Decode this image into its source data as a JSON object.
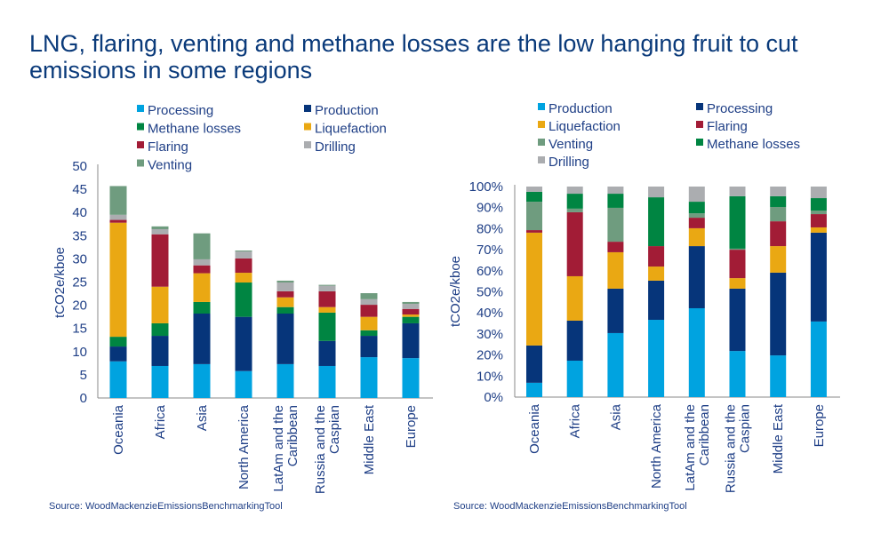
{
  "title": "LNG, flaring, venting and methane losses are the low hanging fruit to cut emissions in some regions",
  "colors": {
    "light_blue": "#00A3E0",
    "dark_blue": "#06357A",
    "green": "#008542",
    "yellow": "#EAA813",
    "red": "#A21C36",
    "gray": "#ABADB0",
    "venting": "#6F9C7F"
  },
  "chart_data": [
    {
      "type": "bar",
      "stacked": true,
      "ylabel": "tCO2e/kboe",
      "ylim": [
        0,
        50
      ],
      "yticks": [
        "0",
        "5",
        "10",
        "15",
        "20",
        "25",
        "30",
        "35",
        "40",
        "45",
        "50"
      ],
      "legend_placement": "top",
      "categories": [
        "Oceania",
        "Africa",
        "Asia",
        "North America",
        "LatAm and the Caribbean",
        "Russia and the Caspian",
        "Middle East",
        "Europe"
      ],
      "series": [
        {
          "name": "Processing",
          "color": "#00A3E0",
          "values": [
            7.9,
            6.9,
            7.3,
            5.8,
            7.3,
            6.9,
            8.8,
            8.6
          ]
        },
        {
          "name": "Production",
          "color": "#06357A",
          "values": [
            3.2,
            6.5,
            10.9,
            11.7,
            10.9,
            5.4,
            4.6,
            7.5
          ]
        },
        {
          "name": "Methane losses",
          "color": "#008542",
          "values": [
            2.1,
            2.7,
            2.5,
            7.4,
            1.4,
            6.1,
            1.2,
            1.4
          ]
        },
        {
          "name": "Liquefaction",
          "color": "#EAA813",
          "values": [
            24.6,
            7.9,
            6.2,
            2.1,
            2.1,
            1.2,
            2.9,
            0.5
          ]
        },
        {
          "name": "Flaring",
          "color": "#A21C36",
          "values": [
            0.6,
            11.3,
            1.7,
            3.1,
            1.3,
            3.4,
            2.6,
            1.2
          ]
        },
        {
          "name": "Drilling",
          "color": "#ABADB0",
          "values": [
            1.1,
            1.1,
            1.3,
            1.5,
            1.9,
            1.2,
            1.2,
            1.1
          ]
        },
        {
          "name": "Venting",
          "color": "#6F9C7F",
          "values": [
            6.2,
            0.6,
            5.6,
            0.2,
            0.4,
            0.2,
            1.3,
            0.4
          ]
        }
      ],
      "source": "Source: WoodMackenzieEmissionsBenchmarkingTool"
    },
    {
      "type": "bar",
      "stacked": true,
      "percent": true,
      "ylabel": "tCO2e/kboe",
      "ylim": [
        0,
        100
      ],
      "yticks": [
        "0%",
        "10%",
        "20%",
        "30%",
        "40%",
        "50%",
        "60%",
        "70%",
        "80%",
        "90%",
        "100%"
      ],
      "legend_placement": "top",
      "categories": [
        "Oceania",
        "Africa",
        "Asia",
        "North America",
        "LatAm and the Caribbean",
        "Russia and the Caspian",
        "Middle East",
        "Europe"
      ],
      "series": [
        {
          "name": "Production",
          "color": "#00A3E0",
          "values": [
            6.8,
            17.3,
            30.4,
            36.7,
            42.2,
            21.9,
            19.8,
            35.9
          ]
        },
        {
          "name": "Processing",
          "color": "#06357A",
          "values": [
            17.7,
            19.0,
            21.1,
            18.6,
            29.5,
            29.6,
            39.3,
            42.2
          ]
        },
        {
          "name": "Liquefaction",
          "color": "#EAA813",
          "values": [
            53.6,
            21.1,
            17.3,
            6.7,
            8.5,
            5.0,
            12.6,
            2.5
          ]
        },
        {
          "name": "Flaring",
          "color": "#A21C36",
          "values": [
            1.2,
            30.4,
            5.0,
            9.7,
            5.0,
            13.5,
            11.8,
            6.3
          ]
        },
        {
          "name": "Venting",
          "color": "#6F9C7F",
          "values": [
            13.5,
            1.7,
            16.1,
            0,
            2.1,
            0.5,
            6.8,
            1.7
          ]
        },
        {
          "name": "Methane losses",
          "color": "#008542",
          "values": [
            4.7,
            7.1,
            6.7,
            23.2,
            5.5,
            24.9,
            5.1,
            5.9
          ]
        },
        {
          "name": "Drilling",
          "color": "#ABADB0",
          "values": [
            2.5,
            3.4,
            3.4,
            5.1,
            7.2,
            4.6,
            4.6,
            5.5
          ]
        }
      ],
      "source": "Source: WoodMackenzieEmissionsBenchmarkingTool"
    }
  ]
}
